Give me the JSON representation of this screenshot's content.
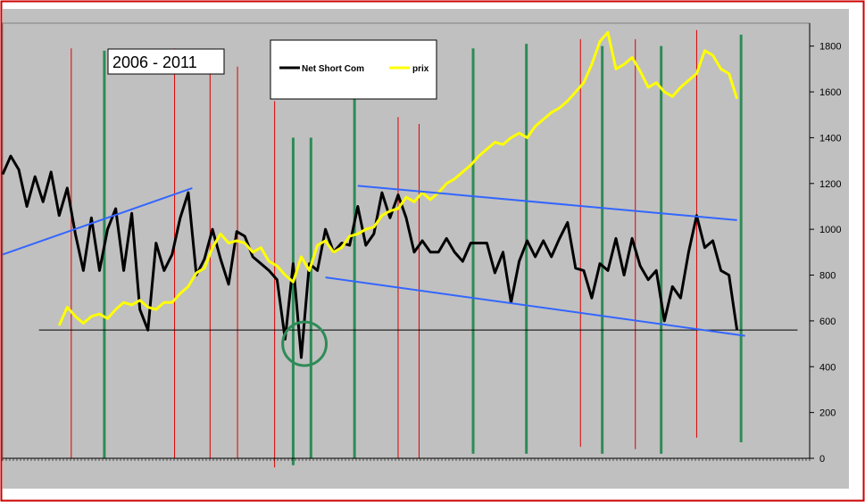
{
  "chart_data": {
    "type": "line",
    "title_box": "2006 - 2011",
    "ylim": [
      0,
      1900
    ],
    "yticks": [
      0,
      200,
      400,
      600,
      800,
      1000,
      1200,
      1400,
      1600,
      1800
    ],
    "x_range": [
      0,
      100
    ],
    "grid": false,
    "legend_position": "top-center",
    "colors": {
      "outer_border": "#cc0000",
      "plot_bg": "#c0c0c0",
      "net_short": "#000000",
      "prix": "#ffff00",
      "trend": "#3366ff",
      "red_lines": "#dd0000",
      "green_lines": "#2e8b57",
      "circle": "#2e8b57"
    },
    "series": [
      {
        "name": "Net Short Com",
        "color": "#000000",
        "x": [
          0,
          1,
          2,
          3,
          4,
          5,
          6,
          7,
          8,
          9,
          10,
          11,
          12,
          13,
          14,
          15,
          16,
          17,
          18,
          19,
          20,
          21,
          22,
          23,
          24,
          25,
          26,
          27,
          28,
          29,
          30,
          31,
          32,
          33,
          34,
          35,
          36,
          37,
          38,
          39,
          40,
          41,
          42,
          43,
          44,
          45,
          46,
          47,
          48,
          49,
          50,
          51,
          52,
          53,
          54,
          55,
          56,
          57,
          58,
          59,
          60,
          61,
          62,
          63,
          64,
          65,
          66,
          67,
          68,
          69,
          70,
          71,
          72,
          73,
          74,
          75,
          76,
          77,
          78,
          79,
          80,
          81,
          82,
          83,
          84,
          85,
          86,
          87,
          88,
          89,
          90,
          91
        ],
        "values": [
          1240,
          1320,
          1260,
          1100,
          1230,
          1120,
          1250,
          1060,
          1180,
          980,
          820,
          1050,
          820,
          1000,
          1090,
          820,
          1070,
          650,
          560,
          940,
          820,
          890,
          1050,
          1160,
          800,
          870,
          1000,
          870,
          760,
          990,
          970,
          880,
          850,
          820,
          780,
          520,
          850,
          440,
          850,
          820,
          1000,
          900,
          940,
          930,
          1100,
          930,
          980,
          1160,
          1050,
          1150,
          1050,
          900,
          950,
          900,
          900,
          960,
          900,
          860,
          940,
          940,
          940,
          810,
          900,
          680,
          860,
          950,
          880,
          950,
          880,
          960,
          1030,
          830,
          820,
          700,
          850,
          820,
          960,
          800,
          960,
          840,
          780,
          820,
          600,
          750,
          700,
          900,
          1060,
          920,
          950,
          820,
          800,
          560
        ]
      },
      {
        "name": "prix",
        "color": "#ffff00",
        "x": [
          7,
          8,
          9,
          10,
          11,
          12,
          13,
          14,
          15,
          16,
          17,
          18,
          19,
          20,
          21,
          22,
          23,
          24,
          25,
          26,
          27,
          28,
          29,
          30,
          31,
          32,
          33,
          34,
          35,
          36,
          37,
          38,
          39,
          40,
          41,
          42,
          43,
          44,
          45,
          46,
          47,
          48,
          49,
          50,
          51,
          52,
          53,
          54,
          55,
          56,
          57,
          58,
          59,
          60,
          61,
          62,
          63,
          64,
          65,
          66,
          67,
          68,
          69,
          70,
          71,
          72,
          73,
          74,
          75,
          76,
          77,
          78,
          79,
          80,
          81,
          82,
          83,
          84,
          85,
          86,
          87,
          88,
          89,
          90,
          91
        ],
        "values": [
          580,
          660,
          620,
          590,
          620,
          630,
          610,
          650,
          680,
          670,
          690,
          660,
          650,
          680,
          680,
          720,
          750,
          810,
          830,
          920,
          980,
          940,
          950,
          940,
          900,
          920,
          860,
          840,
          800,
          770,
          880,
          820,
          930,
          950,
          900,
          920,
          970,
          980,
          1000,
          1010,
          1060,
          1080,
          1090,
          1140,
          1120,
          1160,
          1130,
          1160,
          1200,
          1220,
          1250,
          1280,
          1320,
          1350,
          1380,
          1370,
          1400,
          1420,
          1400,
          1450,
          1480,
          1510,
          1530,
          1560,
          1600,
          1640,
          1720,
          1820,
          1860,
          1700,
          1720,
          1750,
          1690,
          1620,
          1640,
          1600,
          1580,
          1620,
          1650,
          1680,
          1780,
          1760,
          1700,
          1680,
          1570
        ]
      }
    ],
    "trendlines": [
      {
        "x1": 0,
        "y1": 890,
        "x2": 23.5,
        "y2": 1180
      },
      {
        "x1": 44,
        "y1": 1190,
        "x2": 91,
        "y2": 1040
      },
      {
        "x1": 40,
        "y1": 790,
        "x2": 92,
        "y2": 535
      }
    ],
    "horizontal_line": {
      "y": 560,
      "x1": 4.5,
      "x2": 98.5
    },
    "red_verticals": [
      {
        "x": 8.5,
        "y_top": 1790,
        "y_bottom": 0
      },
      {
        "x": 21.3,
        "y_top": 1790,
        "y_bottom": 0
      },
      {
        "x": 25.7,
        "y_top": 1780,
        "y_bottom": 0
      },
      {
        "x": 29.1,
        "y_top": 1710,
        "y_bottom": 0
      },
      {
        "x": 33.7,
        "y_top": 1560,
        "y_bottom": -40
      },
      {
        "x": 49.0,
        "y_top": 1490,
        "y_bottom": 0
      },
      {
        "x": 51.6,
        "y_top": 1460,
        "y_bottom": 0
      },
      {
        "x": 71.6,
        "y_top": 1830,
        "y_bottom": 50
      },
      {
        "x": 78.4,
        "y_top": 1830,
        "y_bottom": 40
      },
      {
        "x": 86.0,
        "y_top": 1870,
        "y_bottom": 90
      }
    ],
    "green_verticals": [
      {
        "x": 12.6,
        "y_top": 1780,
        "y_bottom": 0
      },
      {
        "x": 36.0,
        "y_top": 1400,
        "y_bottom": -30
      },
      {
        "x": 38.2,
        "y_top": 1400,
        "y_bottom": 0
      },
      {
        "x": 43.6,
        "y_top": 1570,
        "y_bottom": 0
      },
      {
        "x": 58.3,
        "y_top": 1790,
        "y_bottom": 20
      },
      {
        "x": 64.9,
        "y_top": 1810,
        "y_bottom": 20
      },
      {
        "x": 74.3,
        "y_top": 1800,
        "y_bottom": 20
      },
      {
        "x": 81.6,
        "y_top": 1800,
        "y_bottom": 20
      },
      {
        "x": 91.5,
        "y_top": 1850,
        "y_bottom": 70
      }
    ],
    "circle": {
      "cx": 37.4,
      "cy": 500,
      "rx": 2.7,
      "ry": 95
    }
  }
}
